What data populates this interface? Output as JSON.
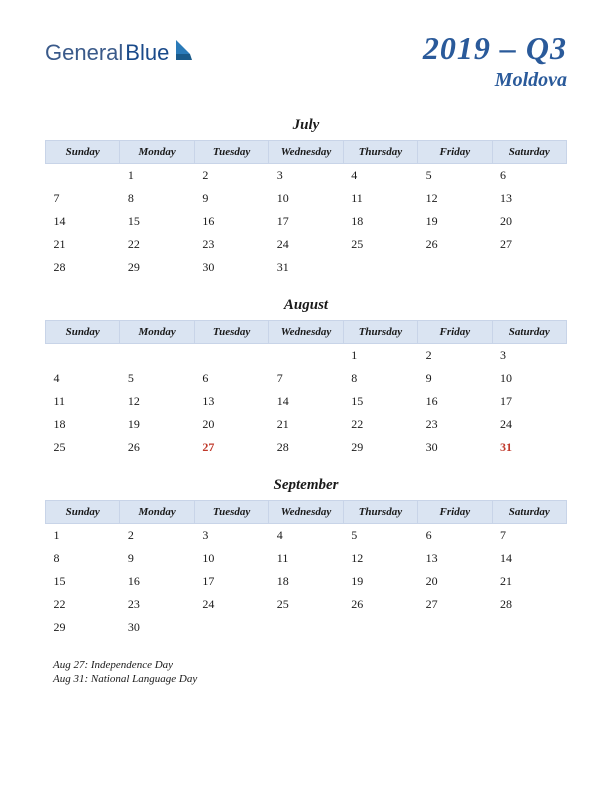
{
  "logo": {
    "text_general": "General",
    "text_blue": "Blue",
    "icon_color": "#2a7ab8"
  },
  "header": {
    "title": "2019 – Q3",
    "subtitle": "Moldova",
    "title_color": "#2a5a9a"
  },
  "calendar": {
    "day_headers": [
      "Sunday",
      "Monday",
      "Tuesday",
      "Wednesday",
      "Thursday",
      "Friday",
      "Saturday"
    ],
    "header_bg": "#dae4f2",
    "header_border": "#c8d4e8",
    "text_color": "#1a1a1a",
    "holiday_color": "#c0392b",
    "months": [
      {
        "name": "July",
        "weeks": [
          [
            "",
            "1",
            "2",
            "3",
            "4",
            "5",
            "6"
          ],
          [
            "7",
            "8",
            "9",
            "10",
            "11",
            "12",
            "13"
          ],
          [
            "14",
            "15",
            "16",
            "17",
            "18",
            "19",
            "20"
          ],
          [
            "21",
            "22",
            "23",
            "24",
            "25",
            "26",
            "27"
          ],
          [
            "28",
            "29",
            "30",
            "31",
            "",
            "",
            ""
          ]
        ],
        "holidays": []
      },
      {
        "name": "August",
        "weeks": [
          [
            "",
            "",
            "",
            "",
            "1",
            "2",
            "3"
          ],
          [
            "4",
            "5",
            "6",
            "7",
            "8",
            "9",
            "10"
          ],
          [
            "11",
            "12",
            "13",
            "14",
            "15",
            "16",
            "17"
          ],
          [
            "18",
            "19",
            "20",
            "21",
            "22",
            "23",
            "24"
          ],
          [
            "25",
            "26",
            "27",
            "28",
            "29",
            "30",
            "31"
          ]
        ],
        "holidays": [
          "27",
          "31"
        ]
      },
      {
        "name": "September",
        "weeks": [
          [
            "1",
            "2",
            "3",
            "4",
            "5",
            "6",
            "7"
          ],
          [
            "8",
            "9",
            "10",
            "11",
            "12",
            "13",
            "14"
          ],
          [
            "15",
            "16",
            "17",
            "18",
            "19",
            "20",
            "21"
          ],
          [
            "22",
            "23",
            "24",
            "25",
            "26",
            "27",
            "28"
          ],
          [
            "29",
            "30",
            "",
            "",
            "",
            "",
            ""
          ]
        ],
        "holidays": []
      }
    ]
  },
  "holiday_list": [
    "Aug 27: Independence Day",
    "Aug 31: National Language Day"
  ]
}
